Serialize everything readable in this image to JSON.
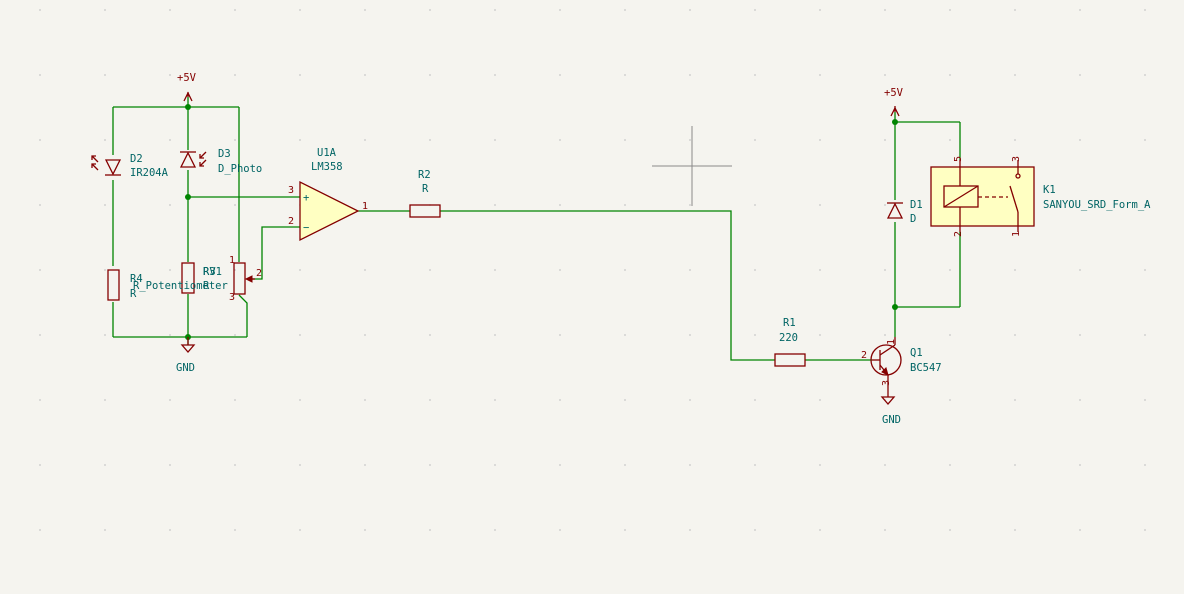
{
  "schematic": {
    "power_top_left": "+5V",
    "gnd_left": "GND",
    "power_top_right": "+5V",
    "gnd_right": "GND",
    "components": {
      "D2": {
        "ref": "D2",
        "value": "IR204A"
      },
      "D3": {
        "ref": "D3",
        "value": "D_Photo"
      },
      "R4": {
        "ref": "R4",
        "value": "R"
      },
      "R3": {
        "ref": "R3",
        "value": "R"
      },
      "RV1": {
        "ref": "RV1",
        "value": "R_Potentiometer"
      },
      "U1A": {
        "ref": "U1A",
        "value": "LM358"
      },
      "R2": {
        "ref": "R2",
        "value": "R"
      },
      "R1": {
        "ref": "R1",
        "value": "220"
      },
      "Q1": {
        "ref": "Q1",
        "value": "BC547"
      },
      "D1": {
        "ref": "D1",
        "value": "D"
      },
      "K1": {
        "ref": "K1",
        "value": "SANYOU_SRD_Form_A"
      }
    },
    "pins": {
      "u1_in_plus": "3",
      "u1_in_minus": "2",
      "u1_out": "1",
      "u1_plus_sign": "+",
      "u1_minus_sign": "−",
      "rv1_wiper": "2",
      "rv1_top": "1",
      "rv1_bottom": "3",
      "q1_base": "2",
      "q1_collector": "1",
      "q1_emitter": "3",
      "k1_5": "5",
      "k1_2": "2",
      "k1_3": "3",
      "k1_1": "1"
    }
  }
}
